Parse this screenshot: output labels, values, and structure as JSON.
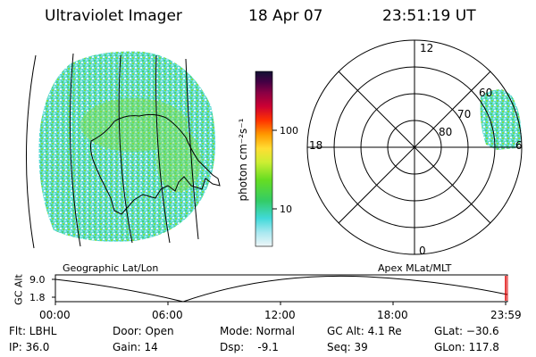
{
  "header": {
    "title": "Ultraviolet Imager",
    "date": "18 Apr 07",
    "time": "23:51:19 UT"
  },
  "panels": {
    "geo_label": "Geographic Lat/Lon",
    "apex_label": "Apex  MLat/MLT"
  },
  "colorbar": {
    "unit_label": "photon cm⁻²s⁻¹",
    "ticks": [
      "100",
      "10"
    ],
    "colors": [
      "#e8f4f8",
      "#9fe6ee",
      "#40d9d9",
      "#33cc66",
      "#66dd22",
      "#ccee33",
      "#ffdd33",
      "#ff9900",
      "#ff3300",
      "#cc0033",
      "#990033",
      "#660044",
      "#330044",
      "#111133"
    ]
  },
  "polar": {
    "mlt_labels": {
      "top": "12",
      "left": "18",
      "right": "6",
      "bottom": "0"
    },
    "lat_labels": [
      "60",
      "70",
      "80"
    ]
  },
  "altitude_plot": {
    "ylabel": "GC Alt",
    "yticks": [
      "9.0",
      "1.8"
    ],
    "xticks": [
      "00:00",
      "06:00",
      "12:00",
      "18:00",
      "23:59"
    ]
  },
  "status": {
    "flt": "Flt: LBHL",
    "ip": "IP: 36.0",
    "door": "Door: Open",
    "gain": "Gain: 14",
    "mode": "Mode: Normal",
    "dsp": "Dsp:    -9.1",
    "gcalt": "GC Alt: 4.1 Re",
    "seq": "Seq: 39",
    "glat": "GLat: −30.6",
    "glon": "GLon: 117.8"
  }
}
